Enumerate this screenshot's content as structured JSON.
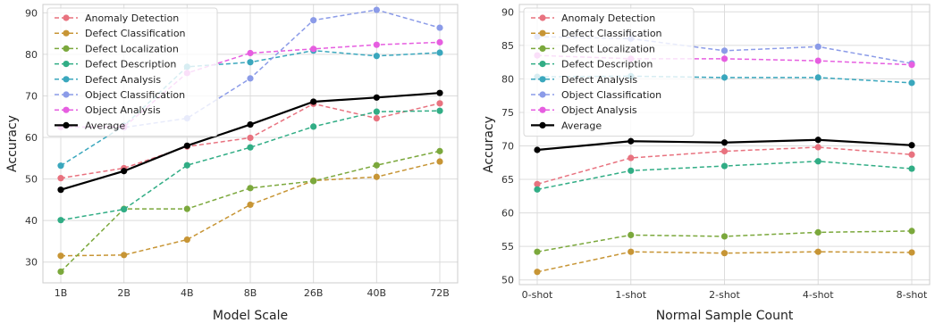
{
  "chart_data": [
    {
      "type": "line",
      "xlabel": "Model Scale",
      "ylabel": "Accuracy",
      "categories": [
        "1B",
        "2B",
        "4B",
        "8B",
        "26B",
        "40B",
        "72B"
      ],
      "ylim": [
        25,
        92
      ],
      "yticks": [
        30,
        40,
        50,
        60,
        70,
        80,
        90
      ],
      "grid": true,
      "legend_position": "top-left",
      "series": [
        {
          "name": "Anomaly Detection",
          "color": "#e8727f",
          "style": "dashed",
          "values": [
            50.2,
            52.6,
            57.8,
            59.9,
            68.1,
            64.6,
            68.2
          ]
        },
        {
          "name": "Defect Classification",
          "color": "#c79535",
          "style": "dashed",
          "values": [
            31.5,
            31.7,
            35.4,
            43.8,
            49.6,
            50.5,
            54.2
          ]
        },
        {
          "name": "Defect Localization",
          "color": "#7ba83c",
          "style": "dashed",
          "values": [
            27.7,
            42.8,
            42.8,
            47.8,
            49.5,
            53.3,
            56.7
          ]
        },
        {
          "name": "Defect Description",
          "color": "#31ad85",
          "style": "dashed",
          "values": [
            40.1,
            42.7,
            53.3,
            57.6,
            62.6,
            66.2,
            66.4
          ]
        },
        {
          "name": "Defect Analysis",
          "color": "#3aa7bd",
          "style": "dashed",
          "values": [
            53.2,
            62.8,
            77.0,
            78.1,
            80.9,
            79.6,
            80.4
          ]
        },
        {
          "name": "Object Classification",
          "color": "#8b9be8",
          "style": "dashed",
          "values": [
            62.5,
            62.4,
            64.6,
            74.2,
            88.2,
            90.7,
            86.4
          ]
        },
        {
          "name": "Object Analysis",
          "color": "#e65ee0",
          "style": "dashed",
          "values": [
            62.5,
            62.5,
            75.5,
            80.3,
            81.3,
            82.3,
            82.9
          ]
        },
        {
          "name": "Average",
          "color": "#000000",
          "style": "solid",
          "values": [
            47.4,
            51.9,
            58.0,
            63.1,
            68.6,
            69.6,
            70.7
          ]
        }
      ]
    },
    {
      "type": "line",
      "xlabel": "Normal Sample Count",
      "ylabel": "Accuracy",
      "categories": [
        "0-shot",
        "1-shot",
        "2-shot",
        "4-shot",
        "8-shot"
      ],
      "ylim": [
        49.3,
        91.1
      ],
      "yticks": [
        50,
        55,
        60,
        65,
        70,
        75,
        80,
        85,
        90
      ],
      "grid": true,
      "legend_position": "top-left",
      "series": [
        {
          "name": "Anomaly Detection",
          "color": "#e8727f",
          "style": "dashed",
          "values": [
            64.3,
            68.2,
            69.2,
            69.8,
            68.7
          ]
        },
        {
          "name": "Defect Classification",
          "color": "#c79535",
          "style": "dashed",
          "values": [
            51.2,
            54.2,
            54.0,
            54.2,
            54.1
          ]
        },
        {
          "name": "Defect Localization",
          "color": "#7ba83c",
          "style": "dashed",
          "values": [
            54.2,
            56.7,
            56.5,
            57.1,
            57.3
          ]
        },
        {
          "name": "Defect Description",
          "color": "#31ad85",
          "style": "dashed",
          "values": [
            63.5,
            66.3,
            67.0,
            67.7,
            66.6
          ]
        },
        {
          "name": "Defect Analysis",
          "color": "#3aa7bd",
          "style": "dashed",
          "values": [
            80.3,
            80.4,
            80.2,
            80.2,
            79.4
          ]
        },
        {
          "name": "Object Classification",
          "color": "#8b9be8",
          "style": "dashed",
          "values": [
            86.3,
            86.0,
            84.2,
            84.8,
            82.3
          ]
        },
        {
          "name": "Object Analysis",
          "color": "#e65ee0",
          "style": "dashed",
          "values": [
            83.5,
            83.0,
            83.0,
            82.7,
            82.1
          ]
        },
        {
          "name": "Average",
          "color": "#000000",
          "style": "solid",
          "values": [
            69.4,
            70.7,
            70.5,
            70.9,
            70.1
          ]
        }
      ]
    }
  ]
}
